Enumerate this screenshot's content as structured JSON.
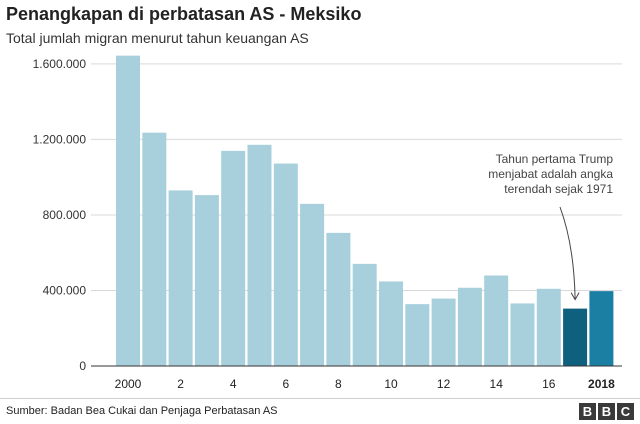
{
  "chart_data": {
    "type": "bar",
    "title": "Penangkapan di perbatasan AS - Meksiko",
    "subtitle": "Total jumlah migran menurut tahun keuangan AS",
    "x": [
      2000,
      2001,
      2002,
      2003,
      2004,
      2005,
      2006,
      2007,
      2008,
      2009,
      2010,
      2011,
      2012,
      2013,
      2014,
      2015,
      2016,
      2017,
      2018
    ],
    "values": [
      1643679,
      1235717,
      929809,
      905065,
      1139282,
      1171396,
      1071972,
      858638,
      705005,
      540865,
      447731,
      327577,
      356873,
      414397,
      479371,
      331333,
      408870,
      303916,
      396579
    ],
    "highlight_indices": [
      17,
      18
    ],
    "x_tick_labels": [
      "2000",
      "2",
      "4",
      "6",
      "8",
      "10",
      "12",
      "14",
      "16",
      "2018"
    ],
    "x_tick_positions": [
      2000,
      2002,
      2004,
      2006,
      2008,
      2010,
      2012,
      2014,
      2016,
      2018
    ],
    "y_ticks": [
      0,
      400000,
      800000,
      1200000,
      1600000
    ],
    "y_tick_labels": [
      "0",
      "400.000",
      "800.000",
      "1.200.000",
      "1.600.000"
    ],
    "ylim": [
      0,
      1700000
    ],
    "grid": true,
    "colors": {
      "bar": "#a8cfdc",
      "highlight_2017": "#0f5f7e",
      "highlight_2018": "#1a7fa3"
    },
    "annotation": {
      "lines": [
        "Tahun pertama Trump",
        "menjabat adalah angka",
        "terendah sejak 1971"
      ],
      "target_year": 2017
    }
  },
  "footer": {
    "source": "Sumber: Badan Bea Cukai dan Penjaga Perbatasan AS",
    "logo_letters": [
      "B",
      "B",
      "C"
    ]
  }
}
